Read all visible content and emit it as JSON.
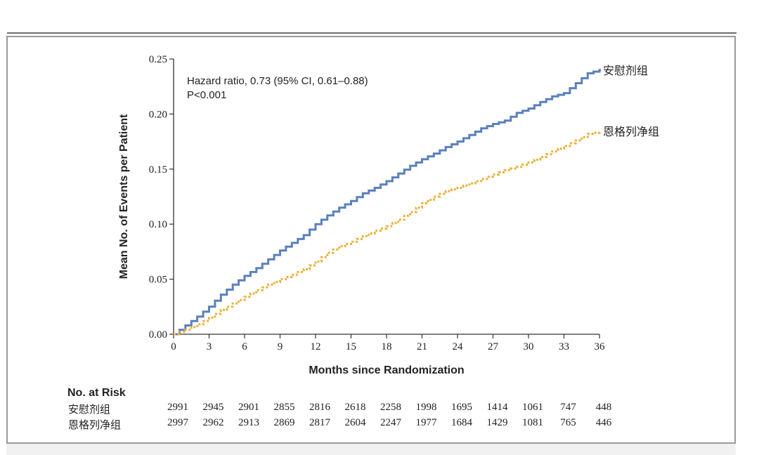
{
  "chart_data": {
    "type": "line",
    "title": "",
    "annotation": {
      "line1": "Hazard ratio, 0.73 (95% CI, 0.61–0.88)",
      "line2": "P<0.001"
    },
    "xlabel": "Months since Randomization",
    "ylabel": "Mean No. of Events per Patient",
    "xlim": [
      0,
      36
    ],
    "ylim": [
      0,
      0.25
    ],
    "x_ticks": [
      0,
      3,
      6,
      9,
      12,
      15,
      18,
      21,
      24,
      27,
      30,
      33,
      36
    ],
    "x_tick_labels": [
      "0",
      "3",
      "6",
      "9",
      "12",
      "15",
      "18",
      "21",
      "24",
      "27",
      "30",
      "33",
      "36"
    ],
    "y_ticks": [
      0,
      0.05,
      0.1,
      0.15,
      0.2,
      0.25
    ],
    "y_tick_labels": [
      "0.00",
      "0.05",
      "0.10",
      "0.15",
      "0.20",
      "0.25"
    ],
    "x": [
      0,
      1,
      2,
      3,
      4,
      5,
      6,
      7,
      8,
      9,
      10,
      11,
      12,
      13,
      14,
      15,
      16,
      17,
      18,
      19,
      20,
      21,
      22,
      23,
      24,
      25,
      26,
      27,
      28,
      29,
      30,
      31,
      32,
      33,
      34,
      35,
      36
    ],
    "series": [
      {
        "name": "安慰剂组",
        "color": "#5b80bd",
        "style": "solid",
        "values": [
          0,
          0.008,
          0.016,
          0.025,
          0.036,
          0.045,
          0.053,
          0.06,
          0.068,
          0.076,
          0.083,
          0.09,
          0.1,
          0.108,
          0.115,
          0.121,
          0.128,
          0.133,
          0.139,
          0.146,
          0.153,
          0.159,
          0.164,
          0.17,
          0.175,
          0.181,
          0.187,
          0.191,
          0.194,
          0.201,
          0.205,
          0.211,
          0.216,
          0.219,
          0.228,
          0.237,
          0.24
        ]
      },
      {
        "name": "恩格列净组",
        "color": "#e8b23a",
        "style": "dotted",
        "values": [
          0,
          0.004,
          0.009,
          0.015,
          0.022,
          0.028,
          0.034,
          0.04,
          0.045,
          0.05,
          0.054,
          0.059,
          0.066,
          0.074,
          0.08,
          0.084,
          0.089,
          0.094,
          0.098,
          0.104,
          0.111,
          0.119,
          0.125,
          0.13,
          0.133,
          0.137,
          0.141,
          0.145,
          0.149,
          0.152,
          0.156,
          0.161,
          0.166,
          0.171,
          0.176,
          0.182,
          0.184
        ]
      }
    ],
    "legend": "right-end labels"
  },
  "risk_table": {
    "title": "No. at Risk",
    "rows": [
      {
        "label": "安慰剂组",
        "values": [
          "2991",
          "2945",
          "2901",
          "2855",
          "2816",
          "2618",
          "2258",
          "1998",
          "1695",
          "1414",
          "1061",
          "747",
          "448"
        ]
      },
      {
        "label": "恩格列净组",
        "values": [
          "2997",
          "2962",
          "2913",
          "2869",
          "2817",
          "2604",
          "2247",
          "1977",
          "1684",
          "1429",
          "1081",
          "765",
          "446"
        ]
      }
    ]
  }
}
